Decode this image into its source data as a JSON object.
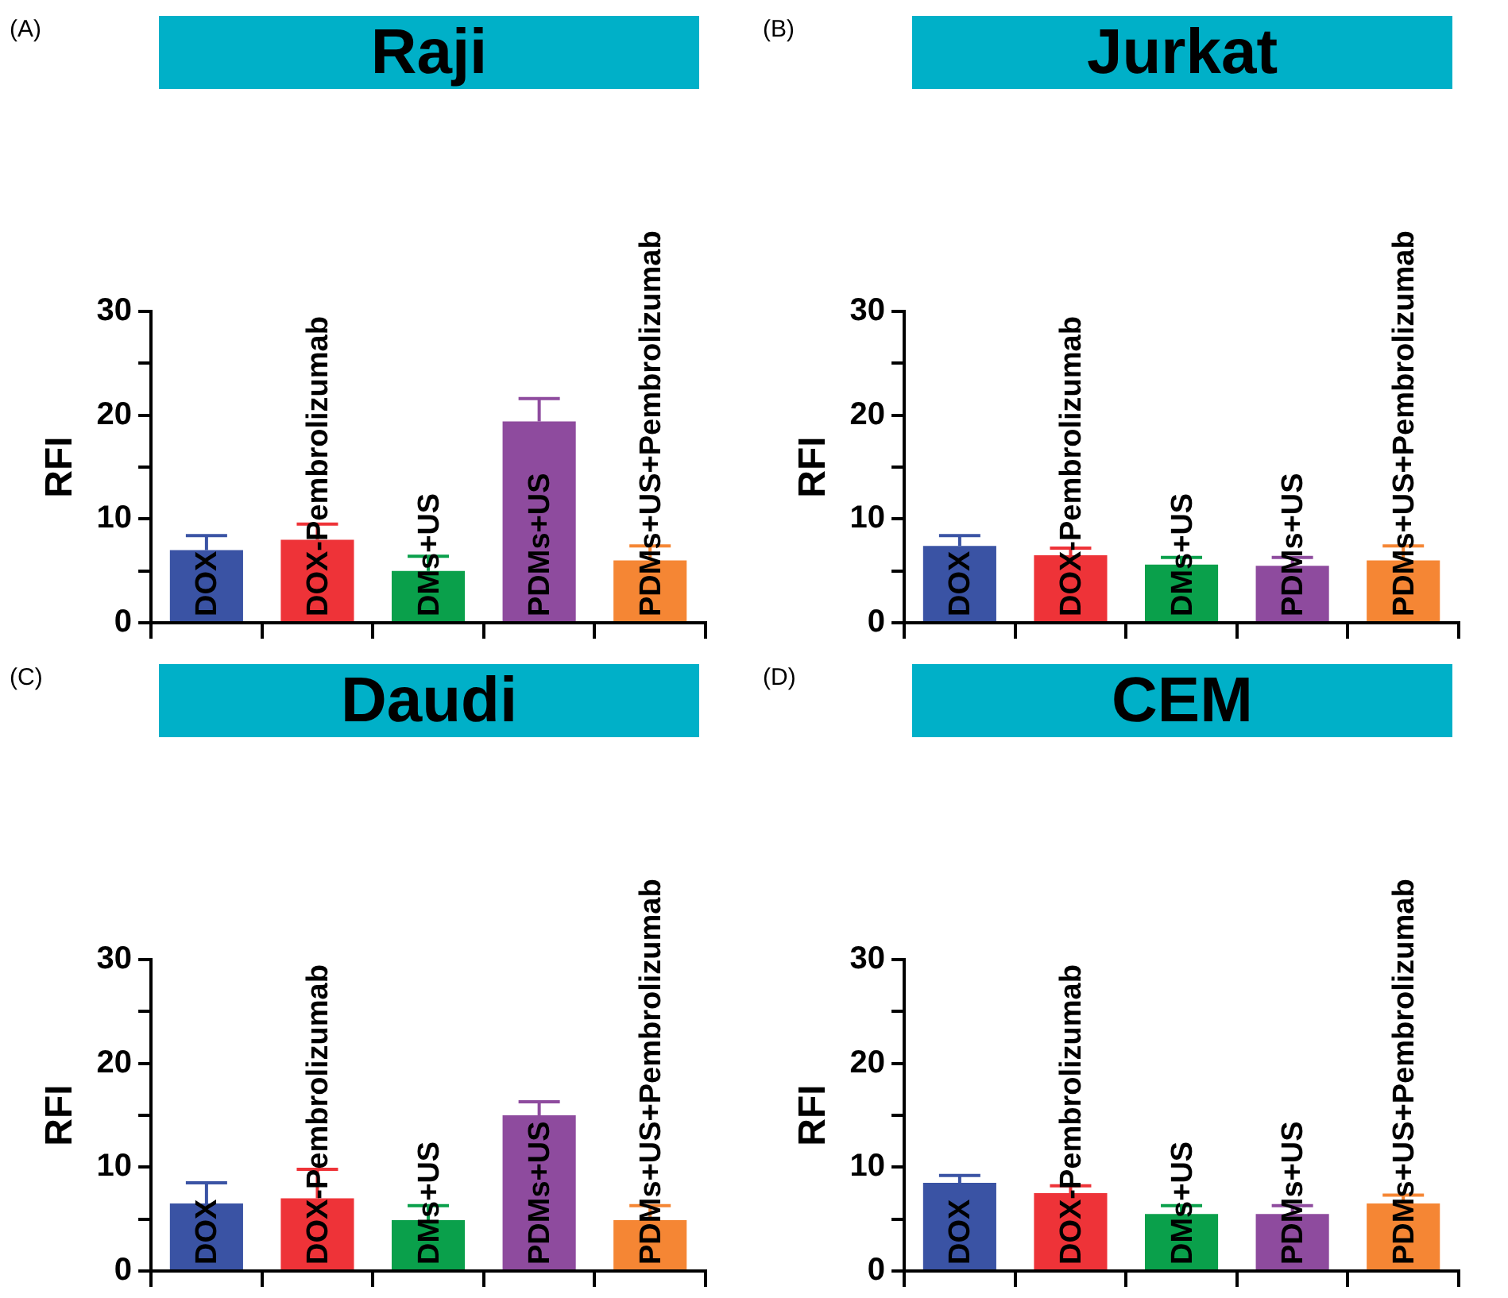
{
  "chart_data": [
    {
      "type": "bar",
      "title": "Raji",
      "annotations": [
        "(A)"
      ],
      "ylabel": "RFI",
      "categories": [
        "DOX",
        "DOX-Pembrolizumab",
        "DMs+US",
        "PDMs+US",
        "PDMs+US+Pembrolizumab"
      ],
      "values": [
        7.0,
        8.0,
        5.0,
        19.4,
        6.0
      ],
      "errors": [
        [
          7.0,
          8.4
        ],
        [
          8.0,
          9.5
        ],
        [
          5.0,
          6.4
        ],
        [
          19.4,
          21.6
        ],
        [
          6.0,
          7.4
        ]
      ],
      "colors": [
        "#3a53a4",
        "#ee3338",
        "#0aa04b",
        "#8e4b9e",
        "#f58634"
      ],
      "ylim": [
        0,
        30
      ],
      "yticks": [
        0,
        {
          "value": 5,
          "label": null
        },
        10,
        {
          "value": 15,
          "label": null
        },
        20,
        {
          "value": 25,
          "label": null
        },
        30
      ],
      "tick_labels": "y"
    },
    {
      "type": "bar",
      "title": "Jurkat",
      "annotations": [
        "(B)"
      ],
      "ylabel": "RFI",
      "categories": [
        "DOX",
        "DOX-Pembrolizumab",
        "DMs+US",
        "PDMs+US",
        "PDMs+US+Pembrolizumab"
      ],
      "values": [
        7.4,
        6.5,
        5.6,
        5.5,
        6.0
      ],
      "errors": [
        [
          7.4,
          8.4
        ],
        [
          6.5,
          7.2
        ],
        [
          5.6,
          6.3
        ],
        [
          5.5,
          6.3
        ],
        [
          6.0,
          7.4
        ]
      ],
      "colors": [
        "#3a53a4",
        "#ee3338",
        "#0aa04b",
        "#8e4b9e",
        "#f58634"
      ],
      "ylim": [
        0,
        30
      ],
      "yticks": [
        0,
        {
          "value": 5,
          "label": null
        },
        10,
        {
          "value": 15,
          "label": null
        },
        20,
        {
          "value": 25,
          "label": null
        },
        30
      ],
      "tick_labels": "y"
    },
    {
      "type": "bar",
      "title": "Daudi",
      "annotations": [
        "(C)"
      ],
      "ylabel": "RFI",
      "categories": [
        "DOX",
        "DOX-Pembrolizumab",
        "DMs+US",
        "PDMs+US",
        "PDMs+US+Pembrolizumab"
      ],
      "values": [
        6.5,
        7.0,
        4.9,
        15.0,
        4.9
      ],
      "errors": [
        [
          6.5,
          8.5
        ],
        [
          7.0,
          9.8
        ],
        [
          4.9,
          6.3
        ],
        [
          15.0,
          16.3
        ],
        [
          4.9,
          6.3
        ]
      ],
      "colors": [
        "#3a53a4",
        "#ee3338",
        "#0aa04b",
        "#8e4b9e",
        "#f58634"
      ],
      "ylim": [
        0,
        30
      ],
      "yticks": [
        0,
        {
          "value": 5,
          "label": null
        },
        10,
        {
          "value": 15,
          "label": null
        },
        20,
        {
          "value": 25,
          "label": null
        },
        30
      ],
      "tick_labels": "y"
    },
    {
      "type": "bar",
      "title": "CEM",
      "annotations": [
        "(D)"
      ],
      "ylabel": "RFI",
      "categories": [
        "DOX",
        "DOX-Pembrolizumab",
        "DMs+US",
        "PDMs+US",
        "PDMs+US+Pembrolizumab"
      ],
      "values": [
        8.5,
        7.5,
        5.5,
        5.5,
        6.5
      ],
      "errors": [
        [
          8.5,
          9.2
        ],
        [
          7.5,
          8.2
        ],
        [
          5.5,
          6.3
        ],
        [
          5.5,
          6.3
        ],
        [
          6.5,
          7.3
        ]
      ],
      "colors": [
        "#3a53a4",
        "#ee3338",
        "#0aa04b",
        "#8e4b9e",
        "#f58634"
      ],
      "ylim": [
        0,
        30
      ],
      "yticks": [
        0,
        {
          "value": 5,
          "label": null
        },
        10,
        {
          "value": 15,
          "label": null
        },
        20,
        {
          "value": 25,
          "label": null
        },
        30
      ],
      "tick_labels": "y"
    }
  ]
}
